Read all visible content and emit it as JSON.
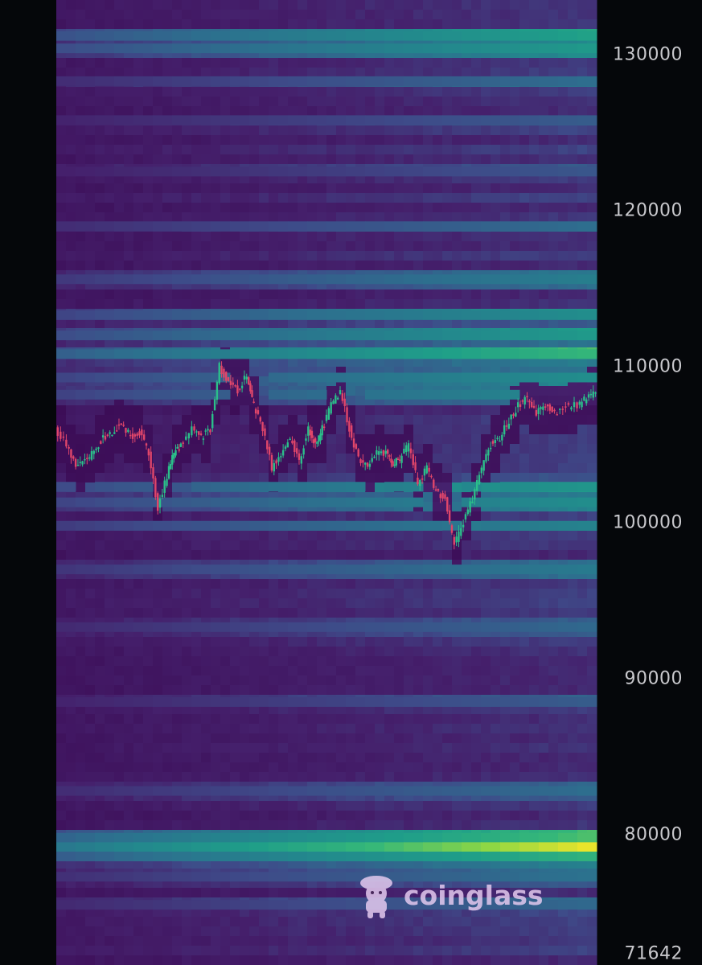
{
  "chart_data": {
    "type": "heatmap",
    "title": "",
    "xlabel": "",
    "ylabel": "",
    "ylim": [
      71642,
      133500
    ],
    "y_ticks": [
      130000,
      120000,
      110000,
      100000,
      90000,
      80000,
      71642
    ],
    "y_tick_labels": [
      "130000",
      "120000",
      "110000",
      "100000",
      "90000",
      "80000",
      "71642"
    ],
    "grid": false,
    "legend": "none",
    "colormap": [
      "#3b0a54",
      "#45206c",
      "#3e4b89",
      "#2d6f8e",
      "#23878d",
      "#1f9e89",
      "#35b779",
      "#8fd744",
      "#fde725"
    ],
    "candle_colors": {
      "up": "#2bbf8a",
      "down": "#e0466a"
    },
    "price_series": {
      "name": "",
      "x": [
        0,
        5,
        9,
        13,
        17,
        21,
        25,
        29,
        33,
        37,
        41,
        45,
        49,
        52,
        55,
        60,
        64,
        68,
        72,
        76,
        80,
        84,
        87,
        91,
        95,
        99,
        103,
        107,
        111,
        114,
        117,
        121,
        125,
        129,
        133,
        137,
        141,
        145,
        148,
        151,
        155,
        159,
        163,
        167,
        171,
        175,
        179,
        183,
        187,
        191,
        195,
        199,
        203,
        207,
        211,
        215,
        219,
        224,
        229,
        233,
        237
      ],
      "y": [
        106000,
        105000,
        103500,
        104000,
        104500,
        105500,
        105800,
        106500,
        105500,
        105800,
        104500,
        101000,
        103000,
        104500,
        105000,
        106000,
        105500,
        106000,
        110000,
        109000,
        108500,
        109500,
        107500,
        106000,
        103500,
        104500,
        105500,
        104000,
        106000,
        105000,
        106000,
        107500,
        108500,
        106000,
        104000,
        103800,
        104500,
        104500,
        103800,
        104000,
        105000,
        102500,
        103500,
        102000,
        101500,
        98500,
        100000,
        101500,
        103500,
        105000,
        105500,
        106500,
        107500,
        108000,
        107000,
        107500,
        107000,
        107500,
        107500,
        108000,
        108500
      ],
      "x_range": [
        0,
        237
      ]
    },
    "bands": [
      {
        "price": 131200,
        "intensity": 0.62
      },
      {
        "price": 130400,
        "intensity": 0.58
      },
      {
        "price": 128300,
        "intensity": 0.36
      },
      {
        "price": 125800,
        "intensity": 0.3
      },
      {
        "price": 122500,
        "intensity": 0.28
      },
      {
        "price": 119000,
        "intensity": 0.36
      },
      {
        "price": 115600,
        "intensity": 0.44
      },
      {
        "price": 113300,
        "intensity": 0.52
      },
      {
        "price": 112000,
        "intensity": 0.58
      },
      {
        "price": 110800,
        "intensity": 0.72
      },
      {
        "price": 109300,
        "intensity": 0.52
      },
      {
        "price": 108200,
        "intensity": 0.5
      },
      {
        "price": 102300,
        "intensity": 0.56
      },
      {
        "price": 101300,
        "intensity": 0.52
      },
      {
        "price": 99800,
        "intensity": 0.46
      },
      {
        "price": 97000,
        "intensity": 0.42
      },
      {
        "price": 93300,
        "intensity": 0.34
      },
      {
        "price": 88500,
        "intensity": 0.3
      },
      {
        "price": 82800,
        "intensity": 0.36
      },
      {
        "price": 79800,
        "intensity": 0.76
      },
      {
        "price": 79200,
        "intensity": 0.95
      },
      {
        "price": 78600,
        "intensity": 0.7
      },
      {
        "price": 77300,
        "intensity": 0.38
      },
      {
        "price": 75500,
        "intensity": 0.34
      }
    ]
  },
  "watermark": {
    "brand": "coinglass",
    "icon": "coinglass-mascot-icon"
  }
}
